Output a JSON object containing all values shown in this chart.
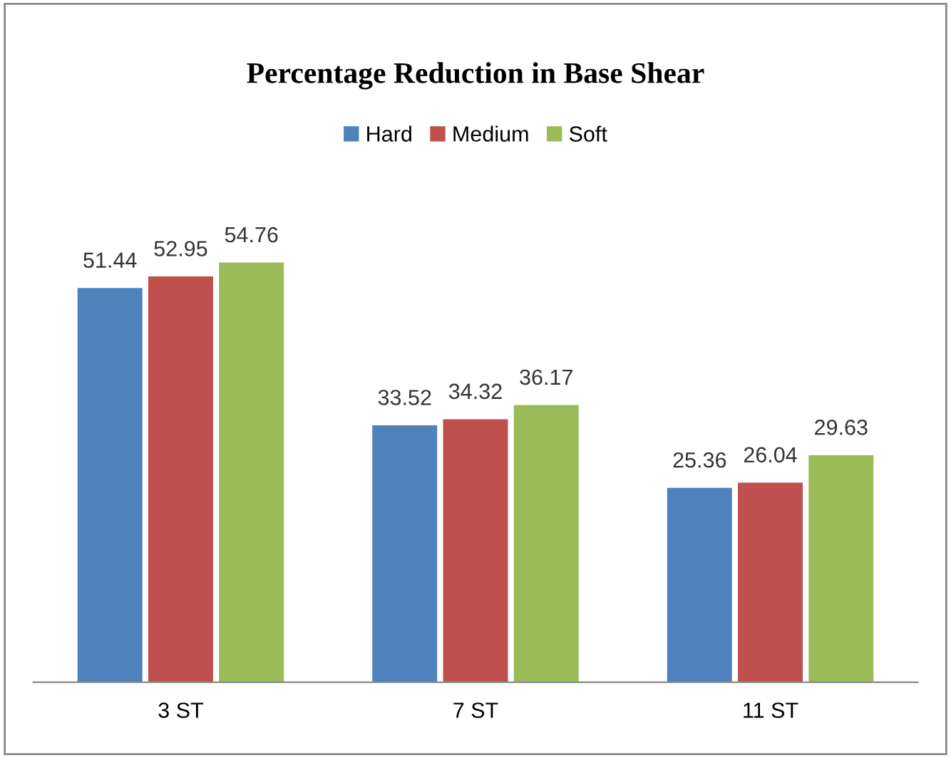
{
  "chart_data": {
    "type": "bar",
    "title": "Percentage Reduction in Base Shear",
    "categories": [
      "3 ST",
      "7 ST",
      "11 ST"
    ],
    "series": [
      {
        "name": "Hard",
        "color": "#4f81bd",
        "values": [
          51.44,
          33.52,
          25.36
        ]
      },
      {
        "name": "Medium",
        "color": "#c0504d",
        "values": [
          52.95,
          34.32,
          26.04
        ]
      },
      {
        "name": "Soft",
        "color": "#9bbb59",
        "values": [
          54.76,
          36.17,
          29.63
        ]
      }
    ],
    "data_labels": true,
    "legend": "top",
    "grid": false
  }
}
